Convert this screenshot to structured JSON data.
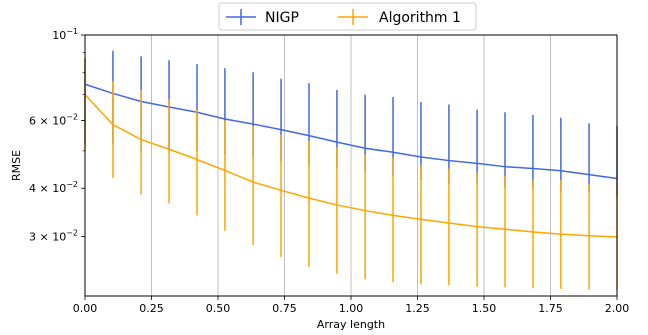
{
  "chart_data": {
    "type": "line",
    "xlabel": "Array length",
    "ylabel": "RMSE",
    "xlim": [
      0.0,
      2.0
    ],
    "ylim": [
      0.021,
      0.1
    ],
    "yscale": "log",
    "grid": "x-major",
    "legend_position": "top-center",
    "x_ticks": [
      "0.00",
      "0.25",
      "0.50",
      "0.75",
      "1.00",
      "1.25",
      "1.50",
      "1.75",
      "2.00"
    ],
    "y_ticks": [
      {
        "value": 0.1,
        "label": "10",
        "exp": "−1",
        "kind": "pow"
      },
      {
        "value": 0.06,
        "label": "6 × 10",
        "exp": "−2",
        "kind": "mul"
      },
      {
        "value": 0.04,
        "label": "4 × 10",
        "exp": "−2",
        "kind": "mul"
      },
      {
        "value": 0.03,
        "label": "3 × 10",
        "exp": "−2",
        "kind": "mul"
      }
    ],
    "x": [
      0.0,
      0.105,
      0.211,
      0.316,
      0.421,
      0.526,
      0.632,
      0.737,
      0.842,
      0.947,
      1.053,
      1.158,
      1.263,
      1.368,
      1.474,
      1.579,
      1.684,
      1.789,
      1.895,
      2.0
    ],
    "series": [
      {
        "name": "NIGP",
        "color": "#4169e1",
        "values": [
          0.0745,
          0.0705,
          0.0672,
          0.065,
          0.063,
          0.0605,
          0.0587,
          0.0568,
          0.0548,
          0.0527,
          0.0508,
          0.0496,
          0.0482,
          0.0472,
          0.0464,
          0.0455,
          0.045,
          0.0444,
          0.0434,
          0.0424
        ],
        "err_low": [
          0.052,
          0.052,
          0.05,
          0.05,
          0.05,
          0.049,
          0.048,
          0.047,
          0.046,
          0.045,
          0.044,
          0.043,
          0.042,
          0.041,
          0.041,
          0.04,
          0.04,
          0.039,
          0.039,
          0.038
        ],
        "err_high": [
          0.087,
          0.091,
          0.088,
          0.086,
          0.084,
          0.082,
          0.08,
          0.077,
          0.075,
          0.072,
          0.07,
          0.069,
          0.067,
          0.066,
          0.064,
          0.063,
          0.062,
          0.061,
          0.059,
          0.058
        ]
      },
      {
        "name": "Algorithm 1",
        "color": "#ffa500",
        "values": [
          0.07,
          0.0585,
          0.0535,
          0.0505,
          0.0475,
          0.0445,
          0.0415,
          0.0395,
          0.0377,
          0.0362,
          0.035,
          0.034,
          0.0332,
          0.0325,
          0.0318,
          0.0313,
          0.0308,
          0.0304,
          0.0301,
          0.0299
        ],
        "err_low": [
          0.05,
          0.0425,
          0.0385,
          0.0365,
          0.034,
          0.031,
          0.0285,
          0.0265,
          0.025,
          0.024,
          0.0232,
          0.0228,
          0.0225,
          0.0224,
          0.0222,
          0.0221,
          0.022,
          0.0219,
          0.0218,
          0.0218
        ],
        "err_high": [
          0.087,
          0.076,
          0.072,
          0.068,
          0.064,
          0.06,
          0.058,
          0.055,
          0.053,
          0.051,
          0.049,
          0.048,
          0.046,
          0.045,
          0.044,
          0.043,
          0.042,
          0.042,
          0.041,
          0.041
        ]
      }
    ]
  }
}
